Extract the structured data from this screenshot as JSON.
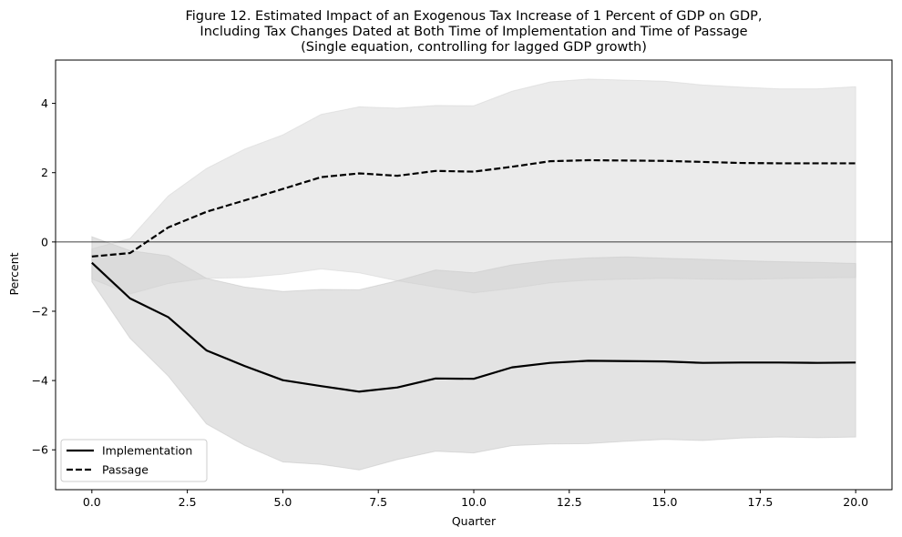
{
  "chart_data": {
    "type": "line",
    "title_lines": [
      "Figure 12. Estimated Impact of an Exogenous Tax Increase of 1 Percent of GDP on GDP,",
      "Including Tax Changes Dated at Both Time of Implementation and Time of Passage",
      "(Single equation, controlling for lagged GDP growth)"
    ],
    "xlabel": "Quarter",
    "ylabel": "Percent",
    "xlim": [
      -0.95,
      20.95
    ],
    "ylim": [
      -7.15,
      5.25
    ],
    "x_ticks": [
      0,
      2.5,
      5,
      7.5,
      10,
      12.5,
      15,
      17.5,
      20
    ],
    "x_tick_labels": [
      "0.0",
      "2.5",
      "5.0",
      "7.5",
      "10.0",
      "12.5",
      "15.0",
      "17.5",
      "20.0"
    ],
    "y_ticks": [
      -6,
      -4,
      -2,
      0,
      2,
      4
    ],
    "y_tick_labels": [
      "−6",
      "−4",
      "−2",
      "0",
      "2",
      "4"
    ],
    "zero_line": true,
    "grid": false,
    "legend_position": "lower-left",
    "x": [
      0,
      1,
      2,
      3,
      4,
      5,
      6,
      7,
      8,
      9,
      10,
      11,
      12,
      13,
      14,
      15,
      16,
      17,
      18,
      19,
      20
    ],
    "series": [
      {
        "name": "Implementation",
        "style": "solid",
        "color": "#000000",
        "values": [
          -0.6,
          -1.63,
          -2.17,
          -3.13,
          -3.58,
          -3.99,
          -4.16,
          -4.32,
          -4.2,
          -3.94,
          -3.95,
          -3.62,
          -3.49,
          -3.43,
          -3.44,
          -3.45,
          -3.49,
          -3.48,
          -3.48,
          -3.49,
          -3.48
        ],
        "band_upper": [
          0.15,
          -0.25,
          -0.4,
          -1.05,
          -1.3,
          -1.43,
          -1.37,
          -1.38,
          -1.12,
          -0.81,
          -0.89,
          -0.66,
          -0.53,
          -0.46,
          -0.43,
          -0.47,
          -0.5,
          -0.54,
          -0.57,
          -0.59,
          -0.62
        ],
        "band_lower": [
          -1.15,
          -2.78,
          -3.87,
          -5.25,
          -5.87,
          -6.35,
          -6.42,
          -6.58,
          -6.28,
          -6.04,
          -6.09,
          -5.88,
          -5.83,
          -5.82,
          -5.75,
          -5.7,
          -5.73,
          -5.66,
          -5.63,
          -5.65,
          -5.63
        ],
        "band_color": "#bdbdbd"
      },
      {
        "name": "Passage",
        "style": "dashed",
        "color": "#000000",
        "values": [
          -0.42,
          -0.32,
          0.42,
          0.87,
          1.2,
          1.53,
          1.87,
          1.98,
          1.91,
          2.05,
          2.03,
          2.17,
          2.33,
          2.36,
          2.35,
          2.34,
          2.31,
          2.28,
          2.27,
          2.27,
          2.27
        ],
        "band_upper": [
          -0.2,
          0.1,
          1.33,
          2.12,
          2.68,
          3.09,
          3.68,
          3.9,
          3.86,
          3.94,
          3.93,
          4.35,
          4.62,
          4.7,
          4.67,
          4.64,
          4.53,
          4.47,
          4.42,
          4.42,
          4.48
        ],
        "band_lower": [
          -1.07,
          -1.5,
          -1.2,
          -1.05,
          -1.03,
          -0.93,
          -0.78,
          -0.89,
          -1.12,
          -1.3,
          -1.47,
          -1.34,
          -1.18,
          -1.1,
          -1.07,
          -1.05,
          -1.07,
          -1.08,
          -1.06,
          -1.04,
          -1.03
        ],
        "band_color": "#cfcfcf"
      }
    ]
  }
}
